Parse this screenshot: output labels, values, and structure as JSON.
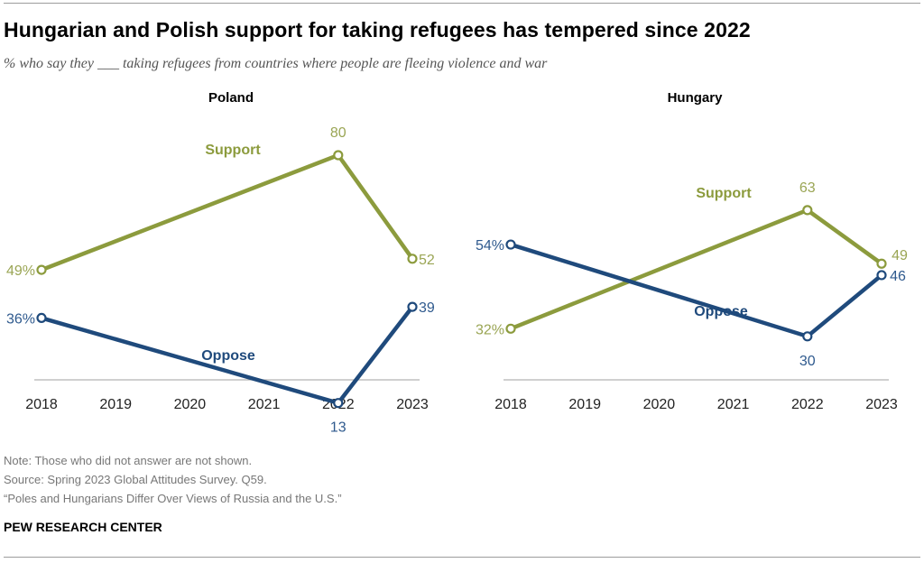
{
  "title": "Hungarian and Polish support for taking refugees has tempered since 2022",
  "subtitle": "% who say they ___ taking refugees from countries where people are fleeing violence and war",
  "colors": {
    "support": "#8c9b3d",
    "oppose": "#1f4a7c",
    "support_text": "#9aa554",
    "oppose_text": "#2f5a8e"
  },
  "chart_data": [
    {
      "type": "line",
      "title": "Poland",
      "categories": [
        "2018",
        "2019",
        "2020",
        "2021",
        "2022",
        "2023"
      ],
      "ylim": [
        0,
        100
      ],
      "series": [
        {
          "name": "Support",
          "points": [
            {
              "x": "2018",
              "y": 49,
              "label": "49%"
            },
            {
              "x": "2022",
              "y": 80,
              "label": "80"
            },
            {
              "x": "2023",
              "y": 52,
              "label": "52"
            }
          ]
        },
        {
          "name": "Oppose",
          "points": [
            {
              "x": "2018",
              "y": 36,
              "label": "36%"
            },
            {
              "x": "2022",
              "y": 13,
              "label": "13"
            },
            {
              "x": "2023",
              "y": 39,
              "label": "39"
            }
          ]
        }
      ]
    },
    {
      "type": "line",
      "title": "Hungary",
      "categories": [
        "2018",
        "2019",
        "2020",
        "2021",
        "2022",
        "2023"
      ],
      "ylim": [
        0,
        100
      ],
      "series": [
        {
          "name": "Support",
          "points": [
            {
              "x": "2018",
              "y": 32,
              "label": "32%"
            },
            {
              "x": "2022",
              "y": 63,
              "label": "63"
            },
            {
              "x": "2023",
              "y": 49,
              "label": "49"
            }
          ]
        },
        {
          "name": "Oppose",
          "points": [
            {
              "x": "2018",
              "y": 54,
              "label": "54%"
            },
            {
              "x": "2022",
              "y": 30,
              "label": "30"
            },
            {
              "x": "2023",
              "y": 46,
              "label": "46"
            }
          ]
        }
      ]
    }
  ],
  "notes": {
    "note": "Note: Those who did not answer are not shown.",
    "source": "Source: Spring 2023 Global Attitudes Survey. Q59.",
    "report": "“Poles and Hungarians Differ Over Views of Russia and the U.S.”",
    "brand": "PEW RESEARCH CENTER"
  }
}
